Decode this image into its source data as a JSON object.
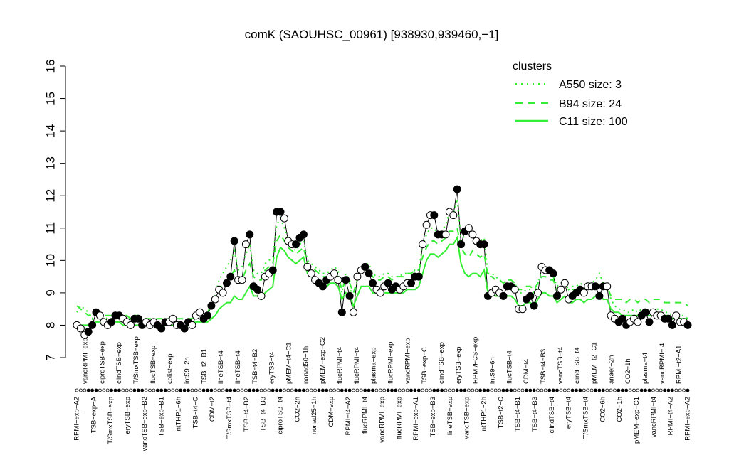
{
  "chart_data": {
    "type": "line",
    "title": "comK (SAOUHSC_00961) [938930,939460,−1]",
    "ylim": [
      7,
      16
    ],
    "yticks": [
      "7",
      "8",
      "9",
      "10",
      "11",
      "12",
      "13",
      "14",
      "15",
      "16"
    ],
    "n_conditions": 160,
    "legend": {
      "title": "clusters",
      "position": "top-right",
      "entries": [
        "A550 size: 3",
        "B94 size: 24",
        "C11 size: 100"
      ],
      "color": "#33ee33"
    },
    "bottom_labels": [
      "RPMI−exp−A2",
      "vancRPMI−exp",
      "TSB−exp−A",
      "ciproTSB−exp",
      "T/SmxTSB−exp",
      "clindTSB−exp",
      "eryTSB−exp",
      "T/SmxTSB−exp",
      "vancTSB−exp−B2",
      "flucTSB−exp",
      "TSB−exp−B1",
      "colist−exp",
      "intTHP1−6h",
      "intS9−2h",
      "TSB−t4−C",
      "TSB−t2−B1",
      "CDM−t2",
      "lineTSB−t4",
      "T/SmxTSB−t4",
      "lineTSB−t4",
      "TSB−t4−B2",
      "TSB−t4−B2",
      "TSB−t4−B3",
      "eryTSB−t4",
      "ciproTSB−t4",
      "pMEM−t4−C1",
      "CO2−2h",
      "nonad50−1h",
      "nonad25−1h",
      "pMEM−exp−C2",
      "CDM−exp",
      "flucRPMI−t4",
      "RPMI−t4−A2",
      "flucRPMI−t4",
      "flucRPMI−t4",
      "plasma−exp",
      "vancRPMI−exp",
      "flucRPMI−exp",
      "flucRPMI−exp",
      "vancRPMI−exp",
      "RPMI−exp−A1",
      "TSB−exp−C",
      "TSB−exp−B3",
      "clindTSB−exp",
      "lineTSB−exp",
      "eryTSB−exp",
      "vancTSB−exp",
      "RPMI/FCS−exp",
      "intTHP1−2h",
      "intS9−6h",
      "TSB−t2−C",
      "flucTSB−t4",
      "TSB−t4−B1",
      "CDM−t4",
      "TSB−t4−B3",
      "TSB−t4−B3",
      "clindTSB−t4",
      "vancTSB−t4",
      "eryTSB−t4",
      "clindTSB−t4",
      "T/SmxTSB−t4",
      "pMEM−t2−C1",
      "CO2−6h",
      "anaer−2h",
      "CO2−1h",
      "CO2−1h",
      "pMEM−exp−C1",
      "plasma−t4",
      "vancRPMI−t4",
      "vancRPMI−t4",
      "RPMI−t4−A2",
      "RPMI−t2−A1",
      "RPMI−exp−A2"
    ],
    "series": [
      {
        "values": [
          8.0,
          7.9,
          7.7,
          7.8,
          8.0,
          8.4,
          8.3,
          8.1,
          8.0,
          8.1,
          8.3,
          8.3,
          8.2,
          8.1,
          8.0,
          8.2,
          8.2,
          8.0,
          8.1,
          8.0,
          8.1,
          8.0,
          7.9,
          8.1,
          8.1,
          8.2,
          8.0,
          8.0,
          7.9,
          8.1,
          8.0,
          8.3,
          8.4,
          8.2,
          8.3,
          8.6,
          8.8,
          9.1,
          9.0,
          9.3,
          9.5,
          10.6,
          9.4,
          9.4,
          10.5,
          10.8,
          9.2,
          9.1,
          8.9,
          9.5,
          9.6,
          9.7,
          11.5,
          11.5,
          11.3,
          10.6,
          10.5,
          10.5,
          10.7,
          10.8,
          9.8,
          9.6,
          9.4,
          9.3,
          9.2,
          9.4,
          9.5,
          9.6,
          9.4,
          8.4,
          9.4,
          8.9,
          8.4,
          9.5,
          9.7,
          9.8,
          9.6,
          9.3,
          9.1,
          9.0,
          9.2,
          9.3,
          9.1,
          9.2,
          9.1,
          9.2,
          9.3,
          9.3,
          9.5,
          9.5,
          10.5,
          11.1,
          11.4,
          11.4,
          10.8,
          10.8,
          10.8,
          11.5,
          11.4,
          12.2,
          10.5,
          10.9,
          11.0,
          10.8,
          10.6,
          10.5,
          10.5,
          8.9,
          9.0,
          9.1,
          9.0,
          8.9,
          9.2,
          9.2,
          9.1,
          8.5,
          8.5,
          8.8,
          8.9,
          8.6,
          9.0,
          9.8,
          9.7,
          9.7,
          9.6,
          8.9,
          9.1,
          9.3,
          8.8,
          8.9,
          9.0,
          9.1,
          9.0,
          9.2,
          9.2,
          9.2,
          8.9,
          9.2,
          9.2,
          8.3,
          8.2,
          8.1,
          8.2,
          8.0,
          8.1,
          8.2,
          8.1,
          8.3,
          8.4,
          8.1,
          8.4,
          8.3,
          8.3,
          8.2,
          8.2,
          8.0,
          8.3,
          8.1,
          8.1,
          8.0
        ]
      },
      {
        "name": "A550 size: 3",
        "style": "dotted",
        "values": [
          8.4,
          8.6,
          8.5,
          8.4,
          8.2,
          8.4,
          8.3,
          8.3,
          8.2,
          8.2,
          8.3,
          8.2,
          8.2,
          8.1,
          8.1,
          8.2,
          8.1,
          8.1,
          8.1,
          8.1,
          8.1,
          8.0,
          8.1,
          8.1,
          8.1,
          8.1,
          8.1,
          8.1,
          8.0,
          8.0,
          8.0,
          8.2,
          8.3,
          8.3,
          8.4,
          8.6,
          8.9,
          9.4,
          9.6,
          9.8,
          10.0,
          10.3,
          9.7,
          9.8,
          10.2,
          10.5,
          9.7,
          9.6,
          9.6,
          9.9,
          10.0,
          10.1,
          11.1,
          11.3,
          11.0,
          10.6,
          10.4,
          10.3,
          10.5,
          10.6,
          10.0,
          9.9,
          9.8,
          9.7,
          9.6,
          9.6,
          9.7,
          9.8,
          9.7,
          9.0,
          9.6,
          9.4,
          8.4,
          9.4,
          9.8,
          9.9,
          9.9,
          9.6,
          9.5,
          9.5,
          9.6,
          9.6,
          9.5,
          9.5,
          9.5,
          9.6,
          9.6,
          9.6,
          9.7,
          9.7,
          10.5,
          10.8,
          11.0,
          11.0,
          10.8,
          10.9,
          11.1,
          11.5,
          11.4,
          11.9,
          10.6,
          10.8,
          10.9,
          10.8,
          10.7,
          10.6,
          10.7,
          9.6,
          9.6,
          9.5,
          9.4,
          9.3,
          9.4,
          9.4,
          9.3,
          9.0,
          9.0,
          9.1,
          9.1,
          9.0,
          9.3,
          9.7,
          9.7,
          9.6,
          9.5,
          9.2,
          9.3,
          9.4,
          9.1,
          9.2,
          9.2,
          9.3,
          9.2,
          9.3,
          9.3,
          9.4,
          9.6,
          9.3,
          9.3,
          8.8,
          8.6,
          8.5,
          8.5,
          8.4,
          8.4,
          8.5,
          8.4,
          8.5,
          8.5,
          8.4,
          8.5,
          8.5,
          8.5,
          8.4,
          8.4,
          8.3,
          8.4,
          8.3,
          8.3,
          8.2
        ]
      },
      {
        "name": "B94 size: 24",
        "style": "dashed",
        "values": [
          8.6,
          8.5,
          8.4,
          8.3,
          8.3,
          8.4,
          8.4,
          8.3,
          8.3,
          8.3,
          8.4,
          8.3,
          8.3,
          8.3,
          8.2,
          8.3,
          8.3,
          8.2,
          8.2,
          8.2,
          8.2,
          8.2,
          8.2,
          8.2,
          8.2,
          8.3,
          8.2,
          8.2,
          8.2,
          8.2,
          8.2,
          8.3,
          8.4,
          8.4,
          8.4,
          8.6,
          8.8,
          9.1,
          9.3,
          9.4,
          9.5,
          9.7,
          9.4,
          9.4,
          9.7,
          9.9,
          9.5,
          9.4,
          9.4,
          9.7,
          9.8,
          9.9,
          10.6,
          10.8,
          10.6,
          10.4,
          10.3,
          10.2,
          10.3,
          10.4,
          9.9,
          9.8,
          9.7,
          9.6,
          9.5,
          9.5,
          9.6,
          9.6,
          9.5,
          9.1,
          9.4,
          9.3,
          9.0,
          9.4,
          9.7,
          9.7,
          9.7,
          9.5,
          9.4,
          9.4,
          9.5,
          9.5,
          9.4,
          9.5,
          9.5,
          9.5,
          9.6,
          9.6,
          9.7,
          9.7,
          10.1,
          10.4,
          10.6,
          10.6,
          10.5,
          10.6,
          10.7,
          10.9,
          10.9,
          11.0,
          10.4,
          10.2,
          10.1,
          10.3,
          10.2,
          10.1,
          10.2,
          9.5,
          9.5,
          9.4,
          9.4,
          9.3,
          9.4,
          9.4,
          9.3,
          9.1,
          9.1,
          9.2,
          9.2,
          9.1,
          9.3,
          9.5,
          9.5,
          9.4,
          9.4,
          9.1,
          9.2,
          9.3,
          9.1,
          9.1,
          9.1,
          9.2,
          9.1,
          9.2,
          9.2,
          9.2,
          9.3,
          9.2,
          9.2,
          8.9,
          8.8,
          8.8,
          8.8,
          8.7,
          8.8,
          8.8,
          8.7,
          8.8,
          8.8,
          8.7,
          8.8,
          8.8,
          8.8,
          8.7,
          8.7,
          8.7,
          8.7,
          8.7,
          8.7,
          8.6
        ]
      },
      {
        "name": "C11 size: 100",
        "style": "solid",
        "values": [
          8.1,
          8.0,
          8.0,
          8.0,
          8.0,
          8.1,
          8.1,
          8.0,
          8.0,
          8.0,
          8.1,
          8.1,
          8.0,
          8.0,
          8.0,
          8.0,
          8.0,
          8.0,
          8.0,
          8.0,
          8.0,
          8.0,
          7.9,
          8.0,
          8.0,
          8.0,
          8.0,
          8.0,
          7.9,
          8.0,
          8.0,
          8.1,
          8.1,
          8.1,
          8.1,
          8.2,
          8.3,
          8.5,
          8.6,
          8.7,
          8.7,
          8.9,
          8.8,
          8.8,
          9.0,
          9.2,
          8.9,
          8.9,
          8.8,
          9.0,
          9.1,
          9.2,
          10.1,
          10.4,
          10.3,
          10.1,
          10.0,
          9.9,
          10.0,
          10.1,
          9.6,
          9.5,
          9.4,
          9.3,
          9.2,
          9.2,
          9.3,
          9.3,
          9.2,
          8.8,
          9.0,
          8.9,
          8.6,
          8.9,
          9.2,
          9.2,
          9.2,
          9.0,
          9.0,
          8.9,
          9.0,
          9.0,
          9.0,
          9.0,
          9.0,
          9.0,
          9.1,
          9.1,
          9.1,
          9.2,
          9.6,
          10.0,
          10.2,
          10.2,
          10.1,
          10.2,
          10.3,
          10.5,
          10.5,
          10.7,
          9.9,
          9.6,
          9.5,
          9.6,
          9.6,
          9.5,
          9.7,
          9.0,
          9.0,
          8.9,
          8.9,
          8.8,
          8.9,
          8.9,
          8.8,
          8.6,
          8.6,
          8.7,
          8.7,
          8.6,
          8.8,
          9.0,
          9.0,
          8.9,
          8.9,
          8.7,
          8.8,
          8.9,
          8.7,
          8.7,
          8.8,
          8.8,
          8.7,
          8.8,
          8.8,
          8.9,
          9.0,
          8.8,
          8.8,
          8.5,
          8.4,
          8.4,
          8.3,
          8.3,
          8.3,
          8.3,
          8.3,
          8.3,
          8.3,
          8.3,
          8.3,
          8.3,
          8.3,
          8.3,
          8.3,
          8.2,
          8.3,
          8.2,
          8.2,
          8.2
        ]
      }
    ]
  }
}
